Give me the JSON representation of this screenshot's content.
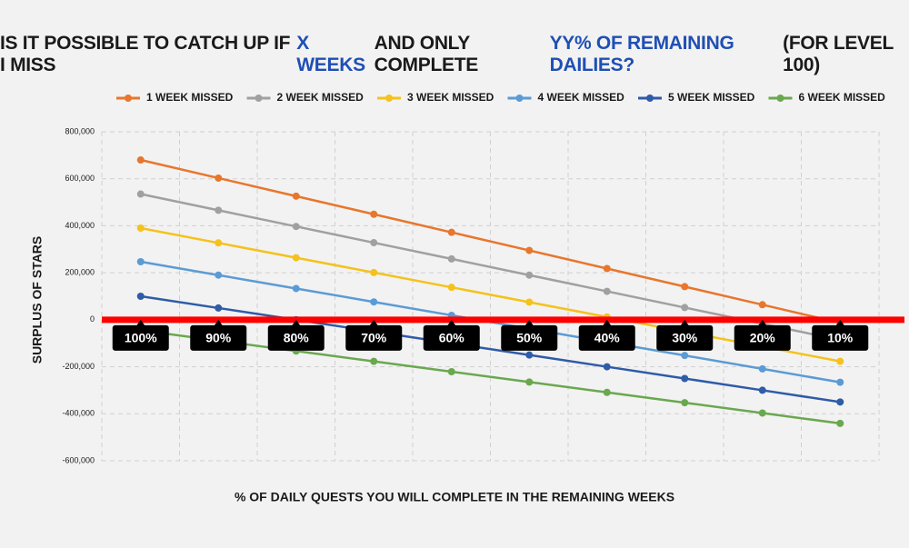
{
  "chart_data": {
    "type": "line",
    "title_parts": [
      {
        "text": "IS IT POSSIBLE TO CATCH UP IF I MISS",
        "color": "#1a1a1a"
      },
      {
        "text": "X WEEKS",
        "color": "#1f4fb5"
      },
      {
        "text": "AND ONLY COMPLETE",
        "color": "#1a1a1a"
      },
      {
        "text": "YY% OF REMAINING DAILIES?",
        "color": "#1f4fb5"
      },
      {
        "text": "(FOR LEVEL 100)",
        "color": "#1a1a1a"
      }
    ],
    "x_label": "% OF DAILY QUESTS YOU WILL COMPLETE IN THE REMAINING WEEKS",
    "y_label": "SURPLUS OF STARS",
    "categories": [
      "100%",
      "90%",
      "80%",
      "70%",
      "60%",
      "50%",
      "40%",
      "30%",
      "20%",
      "10%"
    ],
    "series": [
      {
        "name": "1 WEEK MISSED",
        "color": "#e8762c",
        "values": [
          680000,
          603000,
          526000,
          449000,
          372000,
          295000,
          218000,
          141000,
          64000,
          -13000
        ]
      },
      {
        "name": "2 WEEK MISSED",
        "color": "#a0a0a0",
        "values": [
          535000,
          466000,
          397000,
          328000,
          259000,
          190000,
          121000,
          52000,
          -17000,
          -86000
        ]
      },
      {
        "name": "3 WEEK MISSED",
        "color": "#f5c21b",
        "values": [
          390000,
          327000,
          264000,
          201000,
          138000,
          75000,
          12000,
          -51000,
          -114000,
          -177000
        ]
      },
      {
        "name": "4 WEEK MISSED",
        "color": "#5b9bd5",
        "values": [
          247000,
          190000,
          133000,
          76000,
          19000,
          -38000,
          -95000,
          -152000,
          -209000,
          -266000
        ]
      },
      {
        "name": "5 WEEK MISSED",
        "color": "#2f5ba8",
        "values": [
          100000,
          50000,
          0,
          -50000,
          -100000,
          -150000,
          -200000,
          -250000,
          -300000,
          -350000
        ]
      },
      {
        "name": "6 WEEK MISSED",
        "color": "#6aa84f",
        "values": [
          -45000,
          -89000,
          -133000,
          -177000,
          -221000,
          -265000,
          -309000,
          -353000,
          -397000,
          -441000
        ]
      }
    ],
    "ylim": [
      -600000,
      800000
    ],
    "yticks": [
      {
        "value": -600000,
        "label": "-600,000"
      },
      {
        "value": -400000,
        "label": "-400,000"
      },
      {
        "value": -200000,
        "label": "-200,000"
      },
      0,
      {
        "value": 200000,
        "label": "200,000"
      },
      {
        "value": 400000,
        "label": "400,000"
      },
      {
        "value": 600000,
        "label": "600,000"
      },
      {
        "value": 800000,
        "label": "800,000"
      }
    ],
    "grid": true,
    "zero_line_color": "#ff0000",
    "legend": "top"
  }
}
